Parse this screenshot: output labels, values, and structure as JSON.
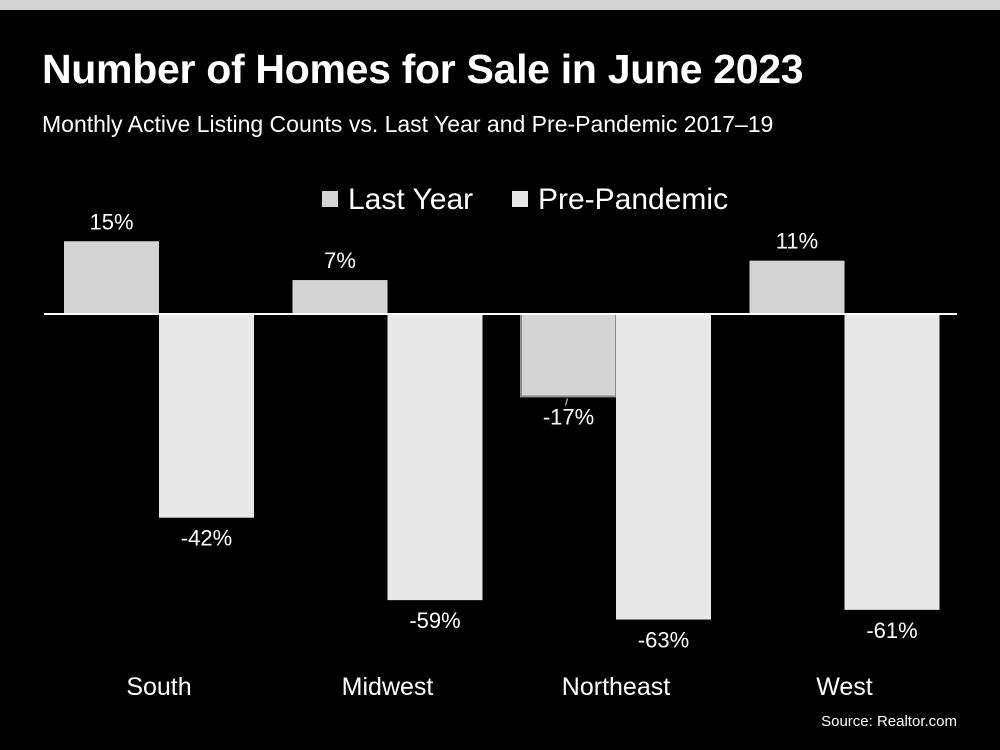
{
  "title": "Number of Homes for Sale in June 2023",
  "subtitle": "Monthly Active Listing Counts vs. Last Year and Pre-Pandemic 2017–19",
  "source": "Source: Realtor.com",
  "colors": {
    "background": "#000000",
    "last_year": "#d4d4d4",
    "pre_pandemic": "#e8e8e8",
    "text": "#ffffff"
  },
  "chart_data": {
    "type": "bar",
    "categories": [
      "South",
      "Midwest",
      "Northeast",
      "West"
    ],
    "series": [
      {
        "name": "Last Year",
        "values": [
          15,
          7,
          -17,
          11
        ],
        "labels": [
          "15%",
          "7%",
          "-17%",
          "11%"
        ]
      },
      {
        "name": "Pre-Pandemic",
        "values": [
          -42,
          -59,
          -63,
          -61
        ],
        "labels": [
          "-42%",
          "-59%",
          "-63%",
          "-61%"
        ]
      }
    ],
    "unit": "%",
    "legend_position": "top-center",
    "grid": false
  }
}
